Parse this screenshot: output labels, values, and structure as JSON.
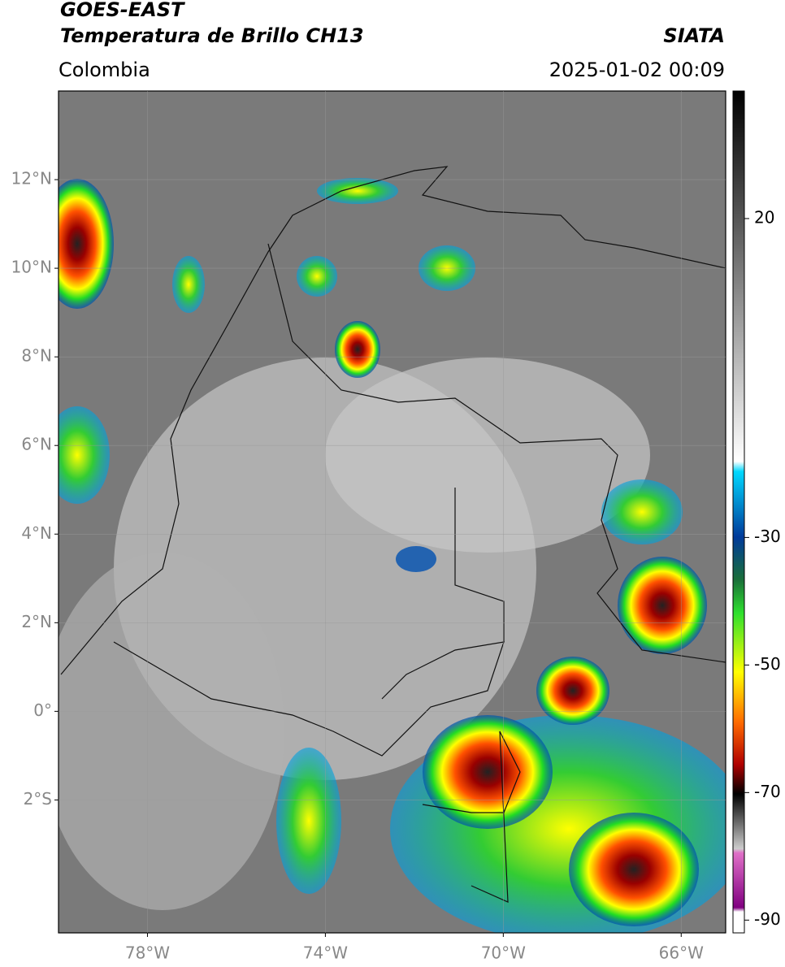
{
  "header": {
    "title": "GOES-EAST",
    "subtitle": "Temperatura de Brillo CH13",
    "source": "SIATA",
    "region": "Colombia",
    "datetime": "2025-01-02 00:09"
  },
  "map": {
    "xlim": [
      -80,
      -65
    ],
    "ylim": [
      -5,
      14
    ],
    "xticks": [
      {
        "value": -78,
        "label": "78°W"
      },
      {
        "value": -74,
        "label": "74°W"
      },
      {
        "value": -70,
        "label": "70°W"
      },
      {
        "value": -66,
        "label": "66°W"
      }
    ],
    "yticks": [
      {
        "value": 12,
        "label": "12°N"
      },
      {
        "value": 10,
        "label": "10°N"
      },
      {
        "value": 8,
        "label": "8°N"
      },
      {
        "value": 6,
        "label": "6°N"
      },
      {
        "value": 4,
        "label": "4°N"
      },
      {
        "value": 2,
        "label": "2°N"
      },
      {
        "value": 0,
        "label": "0°"
      },
      {
        "value": -2,
        "label": "2°S"
      }
    ]
  },
  "colorbar": {
    "lim": [
      -92,
      40
    ],
    "ticks": [
      20,
      -30,
      -50,
      -70,
      -90
    ]
  }
}
